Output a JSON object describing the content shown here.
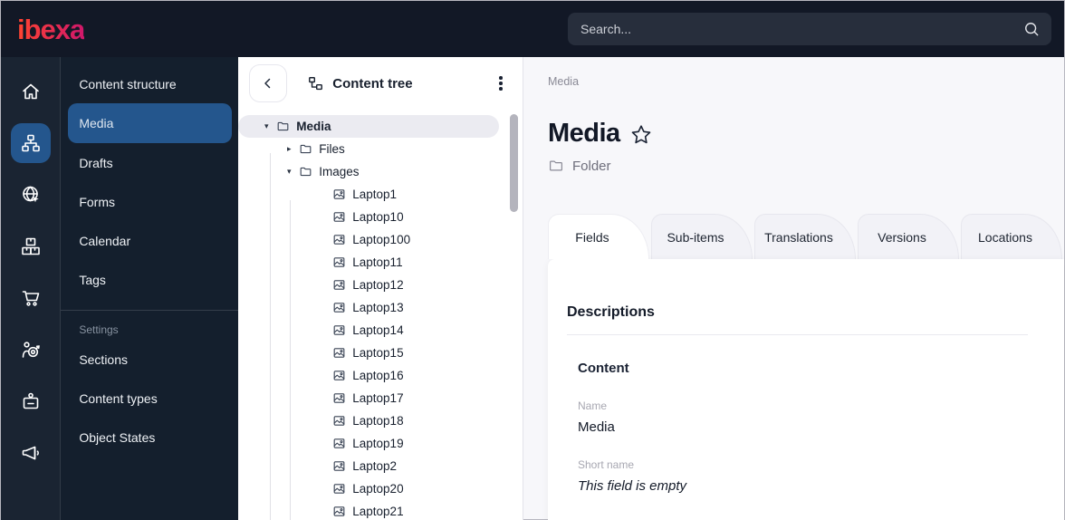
{
  "colors": {
    "accent": "#24568d",
    "logo_start": "#ff4430",
    "logo_end": "#cf176b",
    "selected_row": "#ebebf1"
  },
  "topbar": {
    "logo_text": "ibexa",
    "search_placeholder": "Search..."
  },
  "icon_rail": {
    "items": [
      {
        "icon": "home-icon",
        "active": false
      },
      {
        "icon": "content-structure-icon",
        "active": true
      },
      {
        "icon": "site-globe-icon",
        "active": false
      },
      {
        "icon": "product-catalog-icon",
        "active": false
      },
      {
        "icon": "commerce-cart-icon",
        "active": false
      },
      {
        "icon": "personalization-icon",
        "active": false
      },
      {
        "icon": "customer-portal-icon",
        "active": false
      },
      {
        "icon": "marketing-megaphone-icon",
        "active": false
      }
    ]
  },
  "sidebar": {
    "items": [
      {
        "label": "Content structure",
        "active": false
      },
      {
        "label": "Media",
        "active": true
      },
      {
        "label": "Drafts",
        "active": false
      },
      {
        "label": "Forms",
        "active": false
      },
      {
        "label": "Calendar",
        "active": false
      },
      {
        "label": "Tags",
        "active": false
      }
    ],
    "settings_heading": "Settings",
    "settings_items": [
      {
        "label": "Sections"
      },
      {
        "label": "Content types"
      },
      {
        "label": "Object States"
      }
    ]
  },
  "content_tree": {
    "title": "Content tree",
    "root": {
      "label": "Media",
      "type": "folder",
      "expanded": true,
      "selected": true,
      "children": [
        {
          "label": "Files",
          "type": "folder",
          "expanded": false,
          "children": []
        },
        {
          "label": "Images",
          "type": "folder",
          "expanded": true,
          "children": [
            {
              "label": "Laptop1",
              "type": "image"
            },
            {
              "label": "Laptop10",
              "type": "image"
            },
            {
              "label": "Laptop100",
              "type": "image"
            },
            {
              "label": "Laptop11",
              "type": "image"
            },
            {
              "label": "Laptop12",
              "type": "image"
            },
            {
              "label": "Laptop13",
              "type": "image"
            },
            {
              "label": "Laptop14",
              "type": "image"
            },
            {
              "label": "Laptop15",
              "type": "image"
            },
            {
              "label": "Laptop16",
              "type": "image"
            },
            {
              "label": "Laptop17",
              "type": "image"
            },
            {
              "label": "Laptop18",
              "type": "image"
            },
            {
              "label": "Laptop19",
              "type": "image"
            },
            {
              "label": "Laptop2",
              "type": "image"
            },
            {
              "label": "Laptop20",
              "type": "image"
            },
            {
              "label": "Laptop21",
              "type": "image"
            }
          ]
        }
      ]
    }
  },
  "main": {
    "breadcrumb": "Media",
    "title": "Media",
    "type_label": "Folder",
    "tabs": [
      {
        "label": "Fields",
        "active": true
      },
      {
        "label": "Sub-items",
        "active": false
      },
      {
        "label": "Translations",
        "active": false
      },
      {
        "label": "Versions",
        "active": false
      },
      {
        "label": "Locations",
        "active": false
      }
    ],
    "fields": {
      "section_title": "Descriptions",
      "group_title": "Content",
      "name_label": "Name",
      "name_value": "Media",
      "short_name_label": "Short name",
      "short_name_value": "This field is empty"
    }
  }
}
